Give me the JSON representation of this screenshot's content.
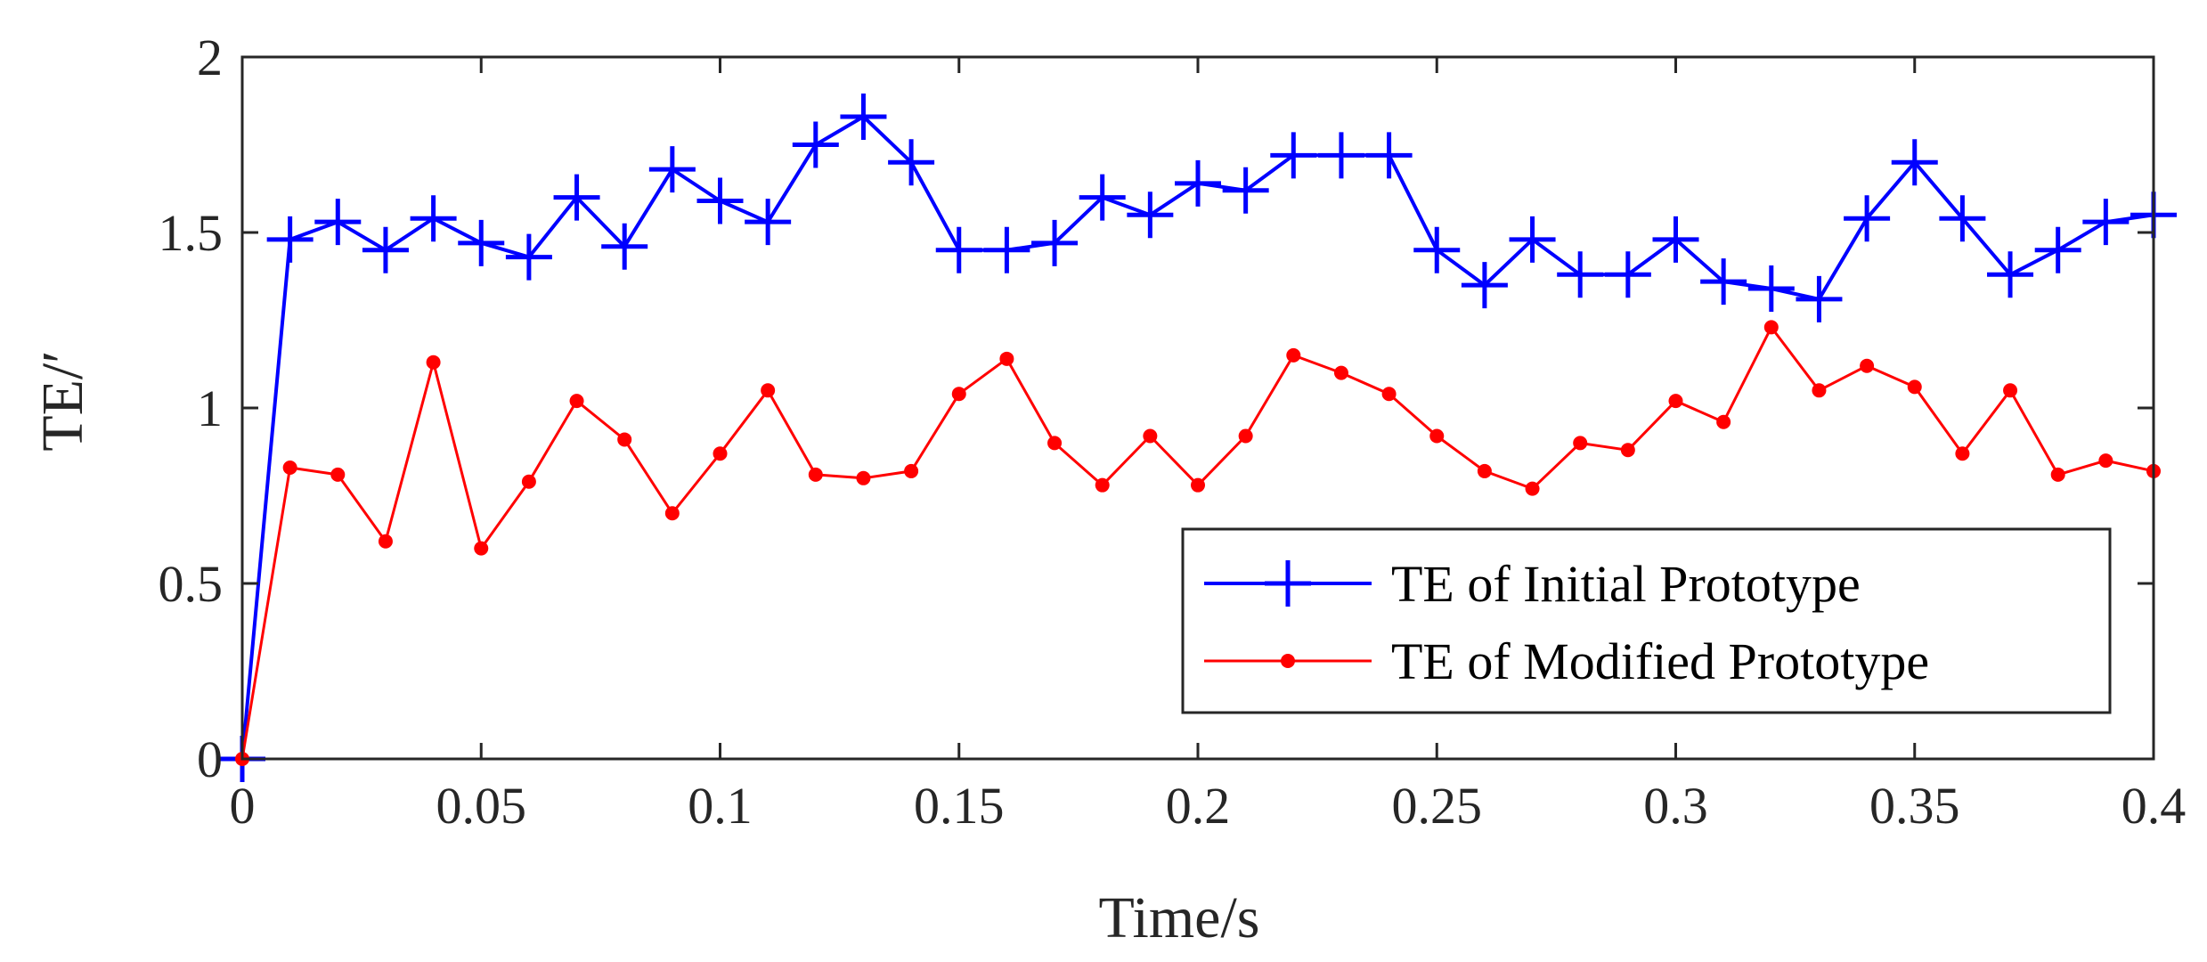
{
  "chart_data": {
    "type": "line",
    "title": "",
    "xlabel": "Time/s",
    "ylabel": "TE/′",
    "xlim": [
      0,
      0.4
    ],
    "ylim": [
      0,
      2
    ],
    "xticks": [
      0,
      0.05,
      0.1,
      0.15,
      0.2,
      0.25,
      0.3,
      0.35,
      0.4
    ],
    "xtick_labels": [
      "0",
      "0.05",
      "0.1",
      "0.15",
      "0.2",
      "0.25",
      "0.3",
      "0.35",
      "0.4"
    ],
    "yticks": [
      0,
      0.5,
      1,
      1.5,
      2
    ],
    "ytick_labels": [
      "0",
      "0.5",
      "1",
      "1.5",
      "2"
    ],
    "grid": false,
    "legend_position": "bottom-right",
    "x": [
      0,
      0.01,
      0.02,
      0.03,
      0.04,
      0.05,
      0.06,
      0.07,
      0.08,
      0.09,
      0.1,
      0.11,
      0.12,
      0.13,
      0.14,
      0.15,
      0.16,
      0.17,
      0.18,
      0.19,
      0.2,
      0.21,
      0.22,
      0.23,
      0.24,
      0.25,
      0.26,
      0.27,
      0.28,
      0.29,
      0.3,
      0.31,
      0.32,
      0.33,
      0.34,
      0.35,
      0.36,
      0.37,
      0.38,
      0.39,
      0.4
    ],
    "series": [
      {
        "name": "TE of Initial Prototype",
        "color": "#0000ff",
        "marker": "plus",
        "values": [
          0,
          1.48,
          1.53,
          1.45,
          1.54,
          1.47,
          1.43,
          1.6,
          1.46,
          1.68,
          1.59,
          1.53,
          1.75,
          1.83,
          1.7,
          1.45,
          1.45,
          1.47,
          1.6,
          1.55,
          1.64,
          1.62,
          1.72,
          1.72,
          1.72,
          1.45,
          1.35,
          1.48,
          1.38,
          1.38,
          1.48,
          1.36,
          1.34,
          1.31,
          1.54,
          1.7,
          1.54,
          1.38,
          1.45,
          1.53,
          1.55
        ]
      },
      {
        "name": "TE of Modified Prototype",
        "color": "#ff0000",
        "marker": "dot",
        "values": [
          0,
          0.83,
          0.81,
          0.62,
          1.13,
          0.6,
          0.79,
          1.02,
          0.91,
          0.7,
          0.87,
          1.05,
          0.81,
          0.8,
          0.82,
          1.04,
          1.14,
          0.9,
          0.78,
          0.92,
          0.78,
          0.92,
          1.15,
          1.1,
          1.04,
          0.92,
          0.82,
          0.77,
          0.9,
          0.88,
          1.02,
          0.96,
          1.23,
          1.05,
          1.12,
          1.06,
          0.87,
          1.05,
          0.81,
          0.85,
          0.82
        ]
      }
    ]
  }
}
